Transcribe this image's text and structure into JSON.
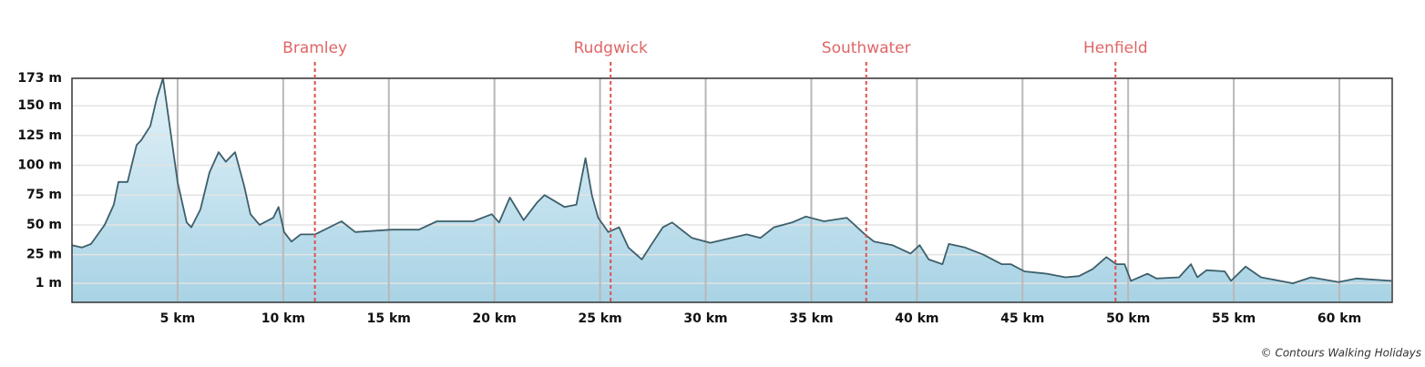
{
  "chart_data": {
    "type": "area",
    "x": [
      0,
      0.47,
      0.9,
      1.55,
      1.98,
      2.2,
      2.63,
      3.06,
      3.28,
      3.71,
      4.01,
      4.31,
      4.57,
      5.0,
      5.43,
      5.65,
      6.08,
      6.51,
      6.94,
      7.28,
      7.72,
      8.15,
      8.45,
      8.88,
      9.53,
      9.78,
      10.04,
      10.39,
      10.82,
      11.51,
      12.76,
      13.41,
      15.13,
      16.42,
      17.28,
      19.0,
      19.87,
      20.22,
      20.73,
      21.38,
      22.03,
      22.37,
      23.32,
      23.88,
      24.31,
      24.61,
      24.91,
      25.39,
      25.9,
      26.34,
      26.98,
      27.41,
      27.97,
      28.41,
      29.35,
      30.22,
      31.94,
      32.59,
      33.23,
      34.09,
      34.74,
      35.6,
      36.68,
      37.54,
      37.97,
      38.84,
      39.7,
      40.13,
      40.56,
      41.21,
      41.51,
      42.28,
      43.15,
      44.01,
      44.44,
      45.09,
      46.16,
      47.03,
      47.67,
      48.32,
      48.97,
      49.44,
      49.83,
      50.13,
      50.91,
      51.34,
      52.41,
      52.97,
      53.28,
      53.71,
      54.57,
      54.87,
      55.56,
      56.29,
      57.8,
      58.66,
      59.96,
      60.82,
      62.46
    ],
    "values": [
      33,
      31,
      34,
      50,
      67,
      86,
      86,
      117,
      121,
      133,
      156,
      173,
      140,
      86,
      52,
      48,
      63,
      94,
      111,
      103,
      111,
      83,
      59,
      50,
      56,
      65,
      44,
      36,
      42,
      42,
      53,
      44,
      46,
      46,
      53,
      53,
      59,
      52,
      73,
      54,
      69,
      75,
      65,
      67,
      106,
      75,
      56,
      44,
      48,
      31,
      21,
      33,
      48,
      52,
      39,
      35,
      42,
      39,
      48,
      52,
      57,
      53,
      56,
      42,
      36,
      33,
      26,
      33,
      21,
      17,
      34,
      31,
      25,
      17,
      17,
      11,
      9,
      6,
      7,
      13,
      23,
      17,
      17,
      3,
      9,
      5,
      6,
      17,
      6,
      12,
      11,
      3,
      15,
      6,
      1,
      6,
      2,
      5,
      3
    ],
    "color": "#3d5f6b",
    "fill_top": "#e3f2f8",
    "fill_bottom": "#a8d3e5",
    "xlim": [
      0,
      62.5
    ],
    "ylim": [
      -15,
      173
    ],
    "xticks": [
      {
        "value": 5,
        "label": "5 km"
      },
      {
        "value": 10,
        "label": "10 km"
      },
      {
        "value": 15,
        "label": "15 km"
      },
      {
        "value": 20,
        "label": "20 km"
      },
      {
        "value": 25,
        "label": "25 km"
      },
      {
        "value": 30,
        "label": "30 km"
      },
      {
        "value": 35,
        "label": "35 km"
      },
      {
        "value": 40,
        "label": "40 km"
      },
      {
        "value": 45,
        "label": "45 km"
      },
      {
        "value": 50,
        "label": "50 km"
      },
      {
        "value": 55,
        "label": "55 km"
      },
      {
        "value": 60,
        "label": "60 km"
      }
    ],
    "yticks": [
      {
        "value": 1,
        "label": "1 m"
      },
      {
        "value": 25,
        "label": "25 m"
      },
      {
        "value": 50,
        "label": "50 m"
      },
      {
        "value": 75,
        "label": "75 m"
      },
      {
        "value": 100,
        "label": "100 m"
      },
      {
        "value": 125,
        "label": "125 m"
      },
      {
        "value": 150,
        "label": "150 m"
      },
      {
        "value": 173,
        "label": "173 m"
      }
    ],
    "grid": true,
    "markers": [
      {
        "label": "Bramley",
        "x": 11.5
      },
      {
        "label": "Rudgwick",
        "x": 25.5
      },
      {
        "label": "Southwater",
        "x": 37.6
      },
      {
        "label": "Henfield",
        "x": 49.4
      }
    ],
    "marker_color": "#d9534f",
    "credit": "© Contours Walking Holidays"
  }
}
